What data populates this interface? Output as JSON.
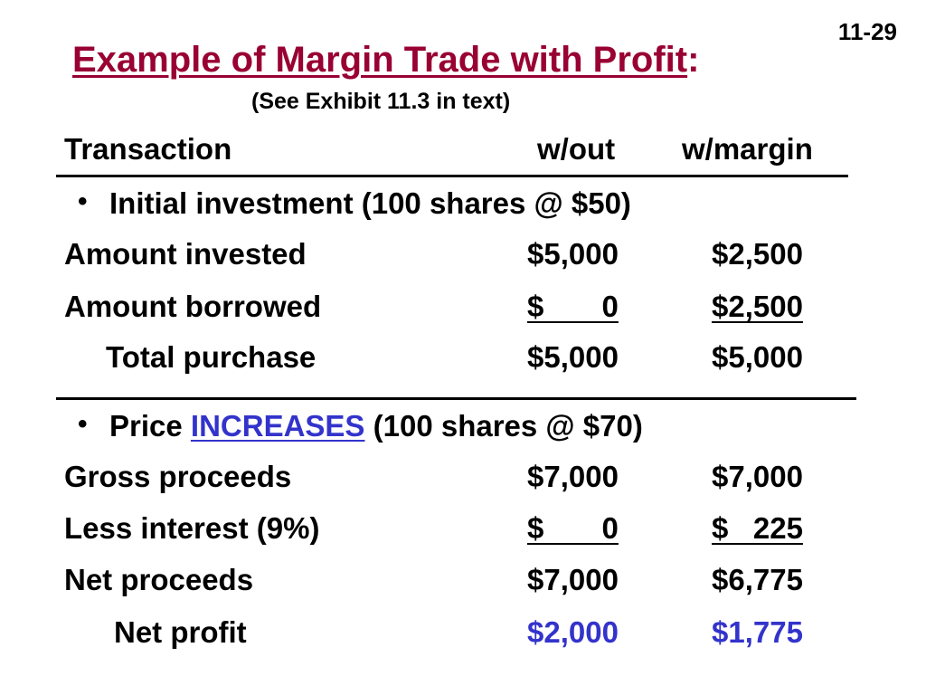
{
  "slide": {
    "number": "11-29",
    "title": "Example of Margin Trade with Profit",
    "title_suffix": ":",
    "subtitle": "(See Exhibit 11.3 in text)"
  },
  "table": {
    "header": {
      "label": "Transaction",
      "col1": "w/out",
      "col2": "w/margin"
    },
    "section1": {
      "bullet": "•",
      "heading": "Initial investment (100 shares @ $50)",
      "rows": [
        {
          "label": "Amount invested",
          "col1": "$5,000",
          "col2": "$2,500"
        },
        {
          "label": "Amount borrowed",
          "col1": "$       0",
          "col2": "$2,500"
        },
        {
          "label": "Total purchase",
          "col1": "$5,000",
          "col2": "$5,000"
        }
      ]
    },
    "section2": {
      "bullet": "•",
      "heading_pre": "Price ",
      "heading_accent": "INCREASES",
      "heading_post": " (100 shares @ $70)",
      "rows": [
        {
          "label": "Gross proceeds",
          "col1": "$7,000",
          "col2": "$7,000"
        },
        {
          "label": "Less interest (9%)",
          "col1": "$       0",
          "col2": "$   225"
        },
        {
          "label": "Net proceeds",
          "col1": "$7,000",
          "col2": "$6,775"
        },
        {
          "label": "Net profit",
          "col1": "$2,000",
          "col2": "$1,775"
        }
      ]
    }
  },
  "colors": {
    "title": "#990033",
    "accent": "#3333cc",
    "text": "#000000"
  }
}
